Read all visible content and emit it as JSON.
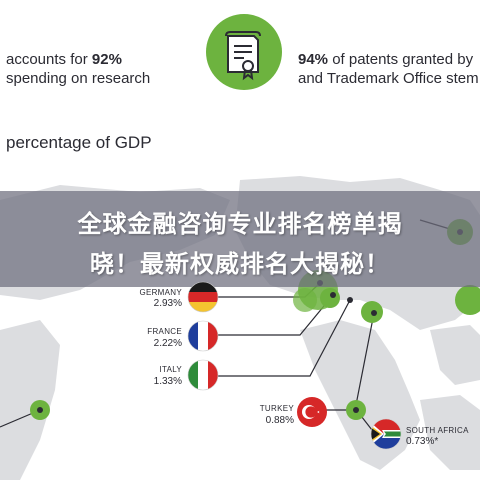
{
  "top_left": {
    "line1_prefix": "accounts for ",
    "line1_bold": "92%",
    "line2": "spending on research"
  },
  "top_right": {
    "line1_bold": "94%",
    "line1_rest": " of patents granted by",
    "line2": "and Trademark Office stem"
  },
  "section_title": "percentage of GDP",
  "banner": {
    "line1": "全球金融咨询专业排名榜单揭",
    "line2": "晓！最新权威排名大揭秘！"
  },
  "countries": [
    {
      "name": "GERMANY",
      "value": "2.93%"
    },
    {
      "name": "FRANCE",
      "value": "2.22%"
    },
    {
      "name": "ITALY",
      "value": "1.33%"
    },
    {
      "name": "TURKEY",
      "value": "0.88%"
    },
    {
      "name": "SOUTH AFRICA",
      "value": "0.73%*"
    }
  ],
  "colors": {
    "accent_green": "#6db33f",
    "map_gray": "#dcdde0",
    "line_dark": "#2b2b33"
  },
  "icons": {
    "patent": "certificate-document-icon"
  }
}
